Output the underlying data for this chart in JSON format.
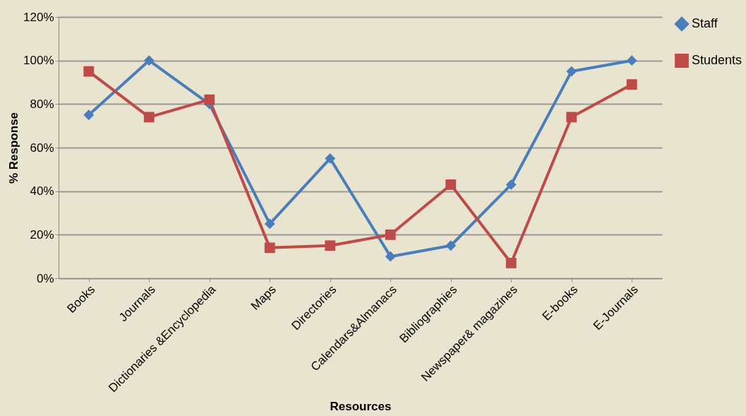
{
  "chart_data": {
    "type": "line",
    "xlabel": "Resources",
    "ylabel": "% Response",
    "categories": [
      "Books",
      "Journals",
      "Dictionaries &Encyclopedia",
      "Maps",
      "Directories",
      "Calendars&Almanacs",
      "Bibliographies",
      "Newspaper& magazines",
      "E-books",
      "E-Journals"
    ],
    "series": [
      {
        "name": "Staff",
        "color": "#4a7ebb",
        "marker": "diamond",
        "values": [
          75,
          100,
          80,
          25,
          55,
          10,
          15,
          43,
          95,
          100
        ]
      },
      {
        "name": "Students",
        "color": "#be4b48",
        "marker": "square",
        "values": [
          95,
          74,
          82,
          14,
          15,
          20,
          43,
          7,
          74,
          89
        ]
      }
    ],
    "ylim": [
      0,
      120
    ],
    "yticks": [
      {
        "value": 0,
        "label": "0%"
      },
      {
        "value": 20,
        "label": "20%"
      },
      {
        "value": 40,
        "label": "40%"
      },
      {
        "value": 60,
        "label": "60%"
      },
      {
        "value": 80,
        "label": "80%"
      },
      {
        "value": 100,
        "label": "100%"
      },
      {
        "value": 120,
        "label": "120%"
      }
    ],
    "grid": "y",
    "legend": "right",
    "line_style": "solid"
  }
}
